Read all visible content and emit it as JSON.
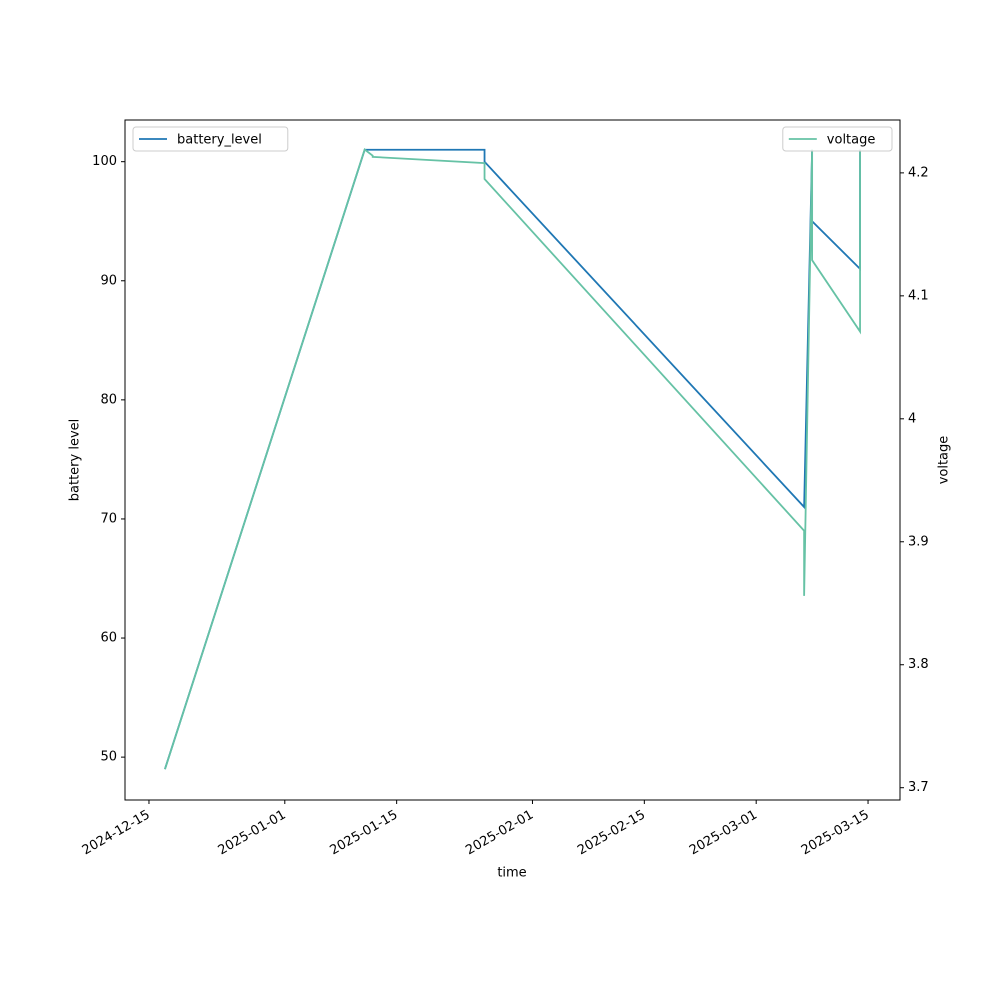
{
  "chart_data": {
    "type": "line",
    "x": [
      "2024-12-17",
      "2025-01-11",
      "2025-01-12",
      "2025-01-12",
      "2025-01-26",
      "2025-01-26",
      "2025-03-07",
      "2025-03-07",
      "2025-03-08",
      "2025-03-08",
      "2025-03-14",
      "2025-03-14"
    ],
    "series": [
      {
        "name": "battery_level",
        "color": "#1f77b4",
        "axis": "y",
        "legend": "upper left",
        "values": [
          49,
          101,
          101,
          101,
          101,
          100,
          71,
          71,
          101,
          95,
          91,
          101
        ]
      },
      {
        "name": "voltage",
        "color": "#66c2a5",
        "axis": "y2",
        "legend": "upper right",
        "values": [
          3.715,
          4.219,
          4.214,
          4.213,
          4.208,
          4.195,
          3.909,
          3.856,
          4.219,
          4.129,
          4.071,
          4.219
        ]
      }
    ],
    "xlabel": "time",
    "ylabel": "battery level",
    "y2label": "voltage",
    "xlim": [
      "2024-12-12",
      "2025-03-19"
    ],
    "xticks": [
      "2024-12-15",
      "2025-01-01",
      "2025-01-15",
      "2025-02-01",
      "2025-02-15",
      "2025-03-01",
      "2025-03-15"
    ],
    "ylim": [
      46.4,
      103.5
    ],
    "yticks": [
      50,
      60,
      70,
      80,
      90,
      100
    ],
    "y2lim": [
      3.69,
      4.243
    ],
    "y2ticks": [
      3.7,
      3.8,
      3.9,
      4.0,
      4.1,
      4.2
    ],
    "grid": false
  }
}
